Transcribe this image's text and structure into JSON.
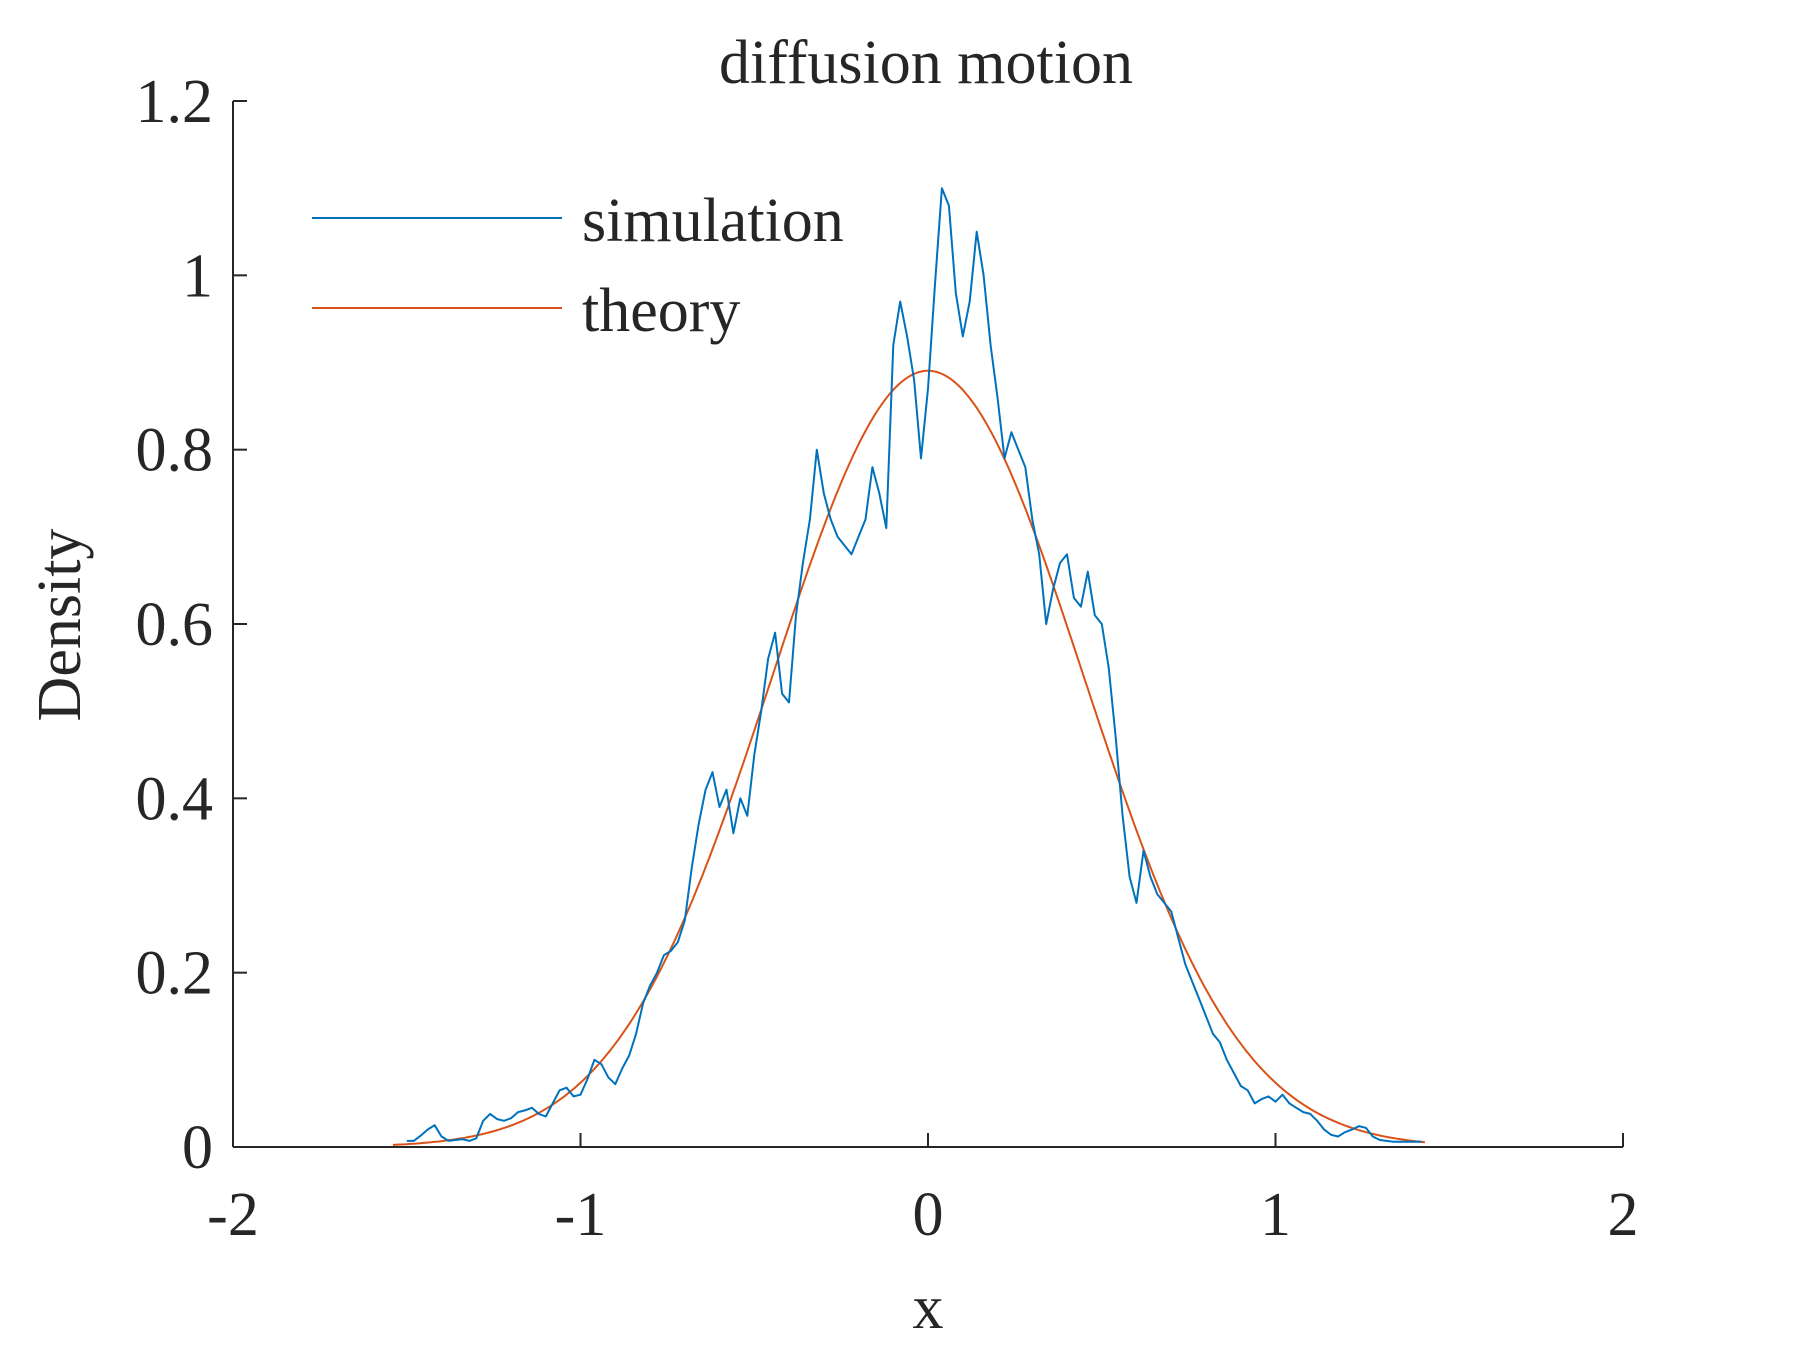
{
  "chart_data": {
    "type": "line",
    "title": "diffusion motion",
    "xlabel": "x",
    "ylabel": "Density",
    "xlim": [
      -2,
      2
    ],
    "ylim": [
      0,
      1.2
    ],
    "xticks": [
      -2,
      -1,
      0,
      1,
      2
    ],
    "xtick_labels": [
      "-2",
      "-1",
      "0",
      "1",
      "2"
    ],
    "yticks": [
      0,
      0.2,
      0.4,
      0.6,
      0.8,
      1,
      1.2
    ],
    "ytick_labels": [
      "0",
      "0.2",
      "0.4",
      "0.6",
      "0.8",
      "1",
      "1.2"
    ],
    "grid": false,
    "legend_position": "top-left",
    "series": [
      {
        "name": "simulation",
        "color": "#0072BD",
        "x": [
          -1.5,
          -1.48,
          -1.46,
          -1.44,
          -1.42,
          -1.4,
          -1.38,
          -1.36,
          -1.34,
          -1.32,
          -1.3,
          -1.28,
          -1.26,
          -1.24,
          -1.22,
          -1.2,
          -1.18,
          -1.16,
          -1.14,
          -1.12,
          -1.1,
          -1.08,
          -1.06,
          -1.04,
          -1.02,
          -1.0,
          -0.98,
          -0.96,
          -0.94,
          -0.92,
          -0.9,
          -0.88,
          -0.86,
          -0.84,
          -0.82,
          -0.8,
          -0.78,
          -0.76,
          -0.74,
          -0.72,
          -0.7,
          -0.68,
          -0.66,
          -0.64,
          -0.62,
          -0.6,
          -0.58,
          -0.56,
          -0.54,
          -0.52,
          -0.5,
          -0.48,
          -0.46,
          -0.44,
          -0.42,
          -0.4,
          -0.38,
          -0.36,
          -0.34,
          -0.32,
          -0.3,
          -0.28,
          -0.26,
          -0.24,
          -0.22,
          -0.2,
          -0.18,
          -0.16,
          -0.14,
          -0.12,
          -0.1,
          -0.08,
          -0.06,
          -0.04,
          -0.02,
          0.0,
          0.02,
          0.04,
          0.06,
          0.08,
          0.1,
          0.12,
          0.14,
          0.16,
          0.18,
          0.2,
          0.22,
          0.24,
          0.26,
          0.28,
          0.3,
          0.32,
          0.34,
          0.36,
          0.38,
          0.4,
          0.42,
          0.44,
          0.46,
          0.48,
          0.5,
          0.52,
          0.54,
          0.56,
          0.58,
          0.6,
          0.62,
          0.64,
          0.66,
          0.68,
          0.7,
          0.72,
          0.74,
          0.76,
          0.78,
          0.8,
          0.82,
          0.84,
          0.86,
          0.88,
          0.9,
          0.92,
          0.94,
          0.96,
          0.98,
          1.0,
          1.02,
          1.04,
          1.06,
          1.08,
          1.1,
          1.12,
          1.14,
          1.16,
          1.18,
          1.2,
          1.22,
          1.24,
          1.26,
          1.28,
          1.3,
          1.32,
          1.34,
          1.36,
          1.38,
          1.4,
          1.42
        ],
        "values": [
          0.007,
          0.007,
          0.013,
          0.02,
          0.025,
          0.012,
          0.007,
          0.008,
          0.009,
          0.007,
          0.01,
          0.03,
          0.038,
          0.032,
          0.03,
          0.033,
          0.04,
          0.042,
          0.045,
          0.038,
          0.035,
          0.05,
          0.065,
          0.068,
          0.058,
          0.06,
          0.078,
          0.1,
          0.095,
          0.08,
          0.072,
          0.09,
          0.105,
          0.13,
          0.165,
          0.185,
          0.2,
          0.22,
          0.225,
          0.235,
          0.26,
          0.32,
          0.37,
          0.41,
          0.43,
          0.39,
          0.41,
          0.36,
          0.4,
          0.38,
          0.45,
          0.5,
          0.56,
          0.59,
          0.52,
          0.51,
          0.61,
          0.67,
          0.72,
          0.8,
          0.75,
          0.72,
          0.7,
          0.69,
          0.68,
          0.7,
          0.72,
          0.78,
          0.75,
          0.71,
          0.92,
          0.97,
          0.93,
          0.88,
          0.79,
          0.87,
          0.99,
          1.1,
          1.08,
          0.98,
          0.93,
          0.97,
          1.05,
          1.0,
          0.92,
          0.86,
          0.79,
          0.82,
          0.8,
          0.78,
          0.72,
          0.68,
          0.6,
          0.64,
          0.67,
          0.68,
          0.63,
          0.62,
          0.66,
          0.61,
          0.6,
          0.55,
          0.47,
          0.38,
          0.31,
          0.28,
          0.34,
          0.31,
          0.29,
          0.28,
          0.27,
          0.24,
          0.21,
          0.19,
          0.17,
          0.15,
          0.13,
          0.12,
          0.1,
          0.085,
          0.07,
          0.065,
          0.05,
          0.055,
          0.058,
          0.052,
          0.06,
          0.05,
          0.045,
          0.04,
          0.038,
          0.03,
          0.02,
          0.014,
          0.012,
          0.017,
          0.02,
          0.024,
          0.022,
          0.012,
          0.008,
          0.007,
          0.006,
          0.006,
          0.006,
          0.006,
          0.006
        ]
      },
      {
        "name": "theory",
        "color": "#D95319",
        "function": "normal pdf, mean 0, sd 0.448",
        "mean": 0,
        "sd": 0.448,
        "x_range": [
          -1.54,
          1.43
        ]
      }
    ]
  }
}
